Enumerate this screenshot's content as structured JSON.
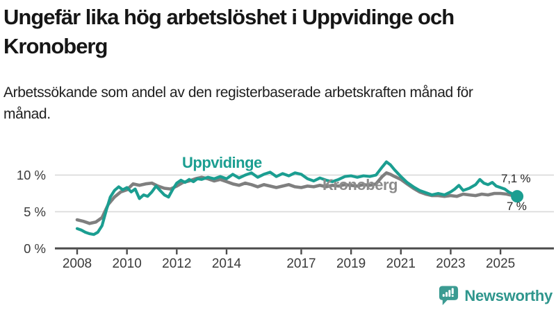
{
  "header": {
    "title": "Ungefär lika hög arbetslöshet i Uppvidinge och Kronoberg",
    "subtitle": "Arbetssökande som andel av den registerbaserade arbetskraften månad för månad."
  },
  "chart": {
    "series_labels": {
      "uppvidinge": "Uppvidinge",
      "kronoberg": "Kronoberg"
    },
    "end_labels": {
      "uppvidinge": "7,1 %",
      "kronoberg": "7 %"
    }
  },
  "chart_data": {
    "type": "line",
    "title": "Ungefär lika hög arbetslöshet i Uppvidinge och Kronoberg",
    "xlabel": "",
    "ylabel": "Arbetssökande som andel av den registerbaserade arbetskraften",
    "x_range": [
      2007.1,
      2027.1
    ],
    "y_range": [
      0,
      13.5
    ],
    "grid": true,
    "legend_position": "inline-labels",
    "x_ticks": [
      {
        "value": 2008,
        "label": "2008"
      },
      {
        "value": 2010,
        "label": "2010"
      },
      {
        "value": 2012,
        "label": "2012"
      },
      {
        "value": 2014,
        "label": "2014"
      },
      {
        "value": 2017,
        "label": "2017"
      },
      {
        "value": 2019,
        "label": "2019"
      },
      {
        "value": 2021,
        "label": "2021"
      },
      {
        "value": 2023,
        "label": "2023"
      },
      {
        "value": 2025,
        "label": "2025"
      }
    ],
    "y_ticks": [
      {
        "value": 0,
        "label": "0 %"
      },
      {
        "value": 5,
        "label": "5 %"
      },
      {
        "value": 10,
        "label": "10 %"
      }
    ],
    "colors": {
      "uppvidinge": "#1B9E91",
      "kronoberg": "#7F7F7F",
      "kronoberg_label": "#8C8C8C",
      "grid": "#DBDBDB",
      "axis": "#4C4C4C",
      "tick_text": "#3A3A3A",
      "end_label_text": "#262626",
      "brand": "#2F968D"
    },
    "end_dot_series": "Uppvidinge",
    "series": [
      {
        "name": "Kronoberg",
        "color": "#7F7F7F",
        "points": [
          [
            2008.0,
            3.9
          ],
          [
            2008.25,
            3.7
          ],
          [
            2008.5,
            3.4
          ],
          [
            2008.75,
            3.6
          ],
          [
            2009.0,
            4.2
          ],
          [
            2009.25,
            6.0
          ],
          [
            2009.5,
            7.0
          ],
          [
            2009.75,
            7.7
          ],
          [
            2010.0,
            8.0
          ],
          [
            2010.25,
            8.8
          ],
          [
            2010.5,
            8.6
          ],
          [
            2010.75,
            8.8
          ],
          [
            2011.0,
            8.9
          ],
          [
            2011.25,
            8.5
          ],
          [
            2011.5,
            8.2
          ],
          [
            2011.75,
            8.1
          ],
          [
            2012.0,
            8.5
          ],
          [
            2012.25,
            9.0
          ],
          [
            2012.5,
            9.2
          ],
          [
            2012.75,
            9.5
          ],
          [
            2013.0,
            9.7
          ],
          [
            2013.25,
            9.5
          ],
          [
            2013.5,
            9.2
          ],
          [
            2013.75,
            9.4
          ],
          [
            2014.0,
            9.1
          ],
          [
            2014.25,
            8.8
          ],
          [
            2014.5,
            8.6
          ],
          [
            2014.75,
            8.9
          ],
          [
            2015.0,
            8.7
          ],
          [
            2015.25,
            8.4
          ],
          [
            2015.5,
            8.7
          ],
          [
            2015.75,
            8.5
          ],
          [
            2016.0,
            8.3
          ],
          [
            2016.25,
            8.5
          ],
          [
            2016.5,
            8.7
          ],
          [
            2016.75,
            8.4
          ],
          [
            2017.0,
            8.3
          ],
          [
            2017.25,
            8.5
          ],
          [
            2017.5,
            8.4
          ],
          [
            2017.75,
            8.6
          ],
          [
            2018.0,
            8.4
          ],
          [
            2018.25,
            8.6
          ],
          [
            2018.5,
            8.5
          ],
          [
            2018.75,
            8.7
          ],
          [
            2019.0,
            8.6
          ],
          [
            2019.25,
            8.5
          ],
          [
            2019.5,
            8.7
          ],
          [
            2019.75,
            8.6
          ],
          [
            2020.0,
            8.8
          ],
          [
            2020.25,
            9.8
          ],
          [
            2020.42,
            10.3
          ],
          [
            2020.58,
            10.1
          ],
          [
            2020.75,
            9.8
          ],
          [
            2021.0,
            9.4
          ],
          [
            2021.25,
            8.8
          ],
          [
            2021.5,
            8.2
          ],
          [
            2021.75,
            7.7
          ],
          [
            2022.0,
            7.4
          ],
          [
            2022.25,
            7.2
          ],
          [
            2022.5,
            7.2
          ],
          [
            2022.75,
            7.1
          ],
          [
            2023.0,
            7.2
          ],
          [
            2023.25,
            7.1
          ],
          [
            2023.5,
            7.4
          ],
          [
            2023.75,
            7.3
          ],
          [
            2024.0,
            7.2
          ],
          [
            2024.25,
            7.4
          ],
          [
            2024.5,
            7.3
          ],
          [
            2024.75,
            7.5
          ],
          [
            2025.0,
            7.5
          ],
          [
            2025.25,
            7.4
          ],
          [
            2025.5,
            7.2
          ],
          [
            2025.67,
            7.0
          ]
        ]
      },
      {
        "name": "Uppvidinge",
        "color": "#1B9E91",
        "points": [
          [
            2008.0,
            2.7
          ],
          [
            2008.17,
            2.5
          ],
          [
            2008.33,
            2.2
          ],
          [
            2008.5,
            2.0
          ],
          [
            2008.67,
            1.9
          ],
          [
            2008.83,
            2.2
          ],
          [
            2009.0,
            3.1
          ],
          [
            2009.17,
            5.2
          ],
          [
            2009.33,
            7.0
          ],
          [
            2009.5,
            7.9
          ],
          [
            2009.67,
            8.4
          ],
          [
            2009.83,
            8.0
          ],
          [
            2010.0,
            8.3
          ],
          [
            2010.17,
            7.7
          ],
          [
            2010.33,
            8.1
          ],
          [
            2010.5,
            6.8
          ],
          [
            2010.67,
            7.3
          ],
          [
            2010.83,
            7.1
          ],
          [
            2011.0,
            7.7
          ],
          [
            2011.17,
            8.5
          ],
          [
            2011.33,
            7.9
          ],
          [
            2011.5,
            7.3
          ],
          [
            2011.67,
            7.0
          ],
          [
            2011.83,
            8.0
          ],
          [
            2012.0,
            8.9
          ],
          [
            2012.17,
            9.3
          ],
          [
            2012.33,
            9.0
          ],
          [
            2012.5,
            9.4
          ],
          [
            2012.67,
            9.1
          ],
          [
            2012.83,
            9.5
          ],
          [
            2013.0,
            9.4
          ],
          [
            2013.25,
            9.7
          ],
          [
            2013.5,
            9.5
          ],
          [
            2013.75,
            9.8
          ],
          [
            2014.0,
            9.5
          ],
          [
            2014.25,
            10.1
          ],
          [
            2014.5,
            9.6
          ],
          [
            2014.75,
            10.0
          ],
          [
            2015.0,
            10.3
          ],
          [
            2015.25,
            9.7
          ],
          [
            2015.5,
            10.1
          ],
          [
            2015.75,
            10.4
          ],
          [
            2016.0,
            9.8
          ],
          [
            2016.25,
            10.2
          ],
          [
            2016.5,
            9.9
          ],
          [
            2016.75,
            10.3
          ],
          [
            2017.0,
            10.1
          ],
          [
            2017.25,
            9.5
          ],
          [
            2017.5,
            9.2
          ],
          [
            2017.75,
            9.6
          ],
          [
            2018.0,
            9.3
          ],
          [
            2018.25,
            9.1
          ],
          [
            2018.5,
            9.4
          ],
          [
            2018.75,
            9.8
          ],
          [
            2019.0,
            9.9
          ],
          [
            2019.25,
            9.7
          ],
          [
            2019.5,
            9.9
          ],
          [
            2019.75,
            9.8
          ],
          [
            2020.0,
            10.0
          ],
          [
            2020.25,
            11.1
          ],
          [
            2020.42,
            11.8
          ],
          [
            2020.58,
            11.4
          ],
          [
            2020.75,
            10.7
          ],
          [
            2021.0,
            9.8
          ],
          [
            2021.25,
            9.0
          ],
          [
            2021.5,
            8.4
          ],
          [
            2021.75,
            7.9
          ],
          [
            2022.0,
            7.6
          ],
          [
            2022.25,
            7.3
          ],
          [
            2022.5,
            7.5
          ],
          [
            2022.75,
            7.3
          ],
          [
            2023.0,
            7.7
          ],
          [
            2023.17,
            8.1
          ],
          [
            2023.33,
            8.6
          ],
          [
            2023.5,
            7.9
          ],
          [
            2023.75,
            8.2
          ],
          [
            2024.0,
            8.7
          ],
          [
            2024.17,
            9.4
          ],
          [
            2024.33,
            8.9
          ],
          [
            2024.5,
            8.7
          ],
          [
            2024.67,
            9.0
          ],
          [
            2024.83,
            8.5
          ],
          [
            2025.0,
            8.3
          ],
          [
            2025.17,
            8.1
          ],
          [
            2025.33,
            7.7
          ],
          [
            2025.5,
            7.4
          ],
          [
            2025.67,
            7.1
          ]
        ]
      }
    ]
  },
  "footer": {
    "brand": "Newsworthy"
  }
}
